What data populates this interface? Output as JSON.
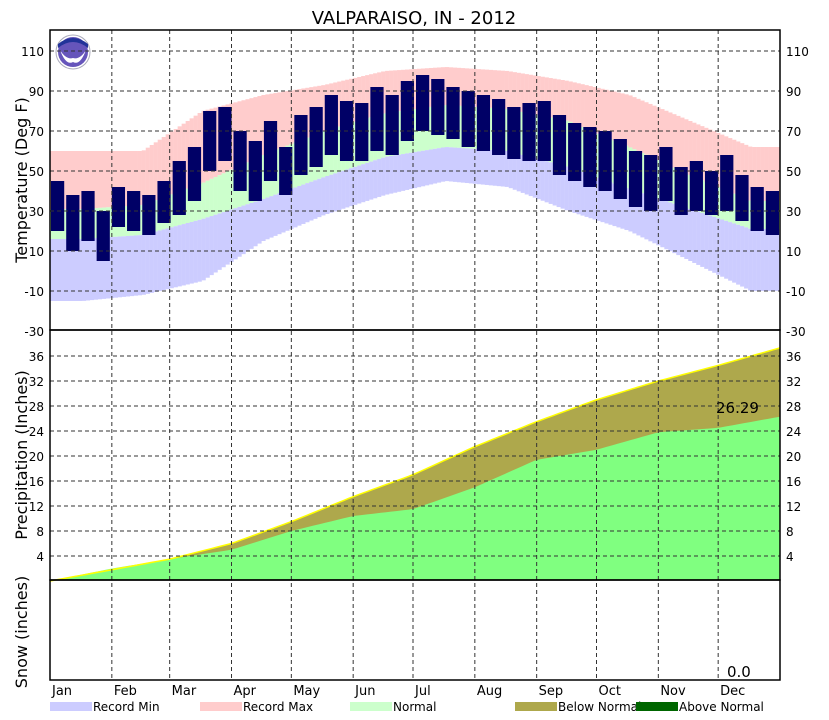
{
  "chart_data": {
    "type": "bar",
    "title": "VALPARAISO, IN - 2012",
    "months": [
      "Jan",
      "Feb",
      "Mar",
      "Apr",
      "May",
      "Jun",
      "Jul",
      "Aug",
      "Sep",
      "Oct",
      "Nov",
      "Dec"
    ],
    "colors": {
      "record_min": "#ccccff",
      "record_max": "#ffcccc",
      "normal": "#ccffcc",
      "actual_temp": "#000066",
      "below_normal": "#aea84c",
      "above_normal": "#006600",
      "precip_actual": "#80ff80",
      "normal_line": "#ffff00"
    },
    "temperature": {
      "ylabel": "Temperature (Deg F)",
      "ylim": [
        -30,
        120
      ],
      "ticks": [
        -30,
        -10,
        10,
        30,
        50,
        70,
        90,
        110
      ],
      "monthly_record_max": [
        60,
        60,
        80,
        88,
        93,
        100,
        102,
        100,
        95,
        88,
        75,
        62
      ],
      "monthly_record_min": [
        -15,
        -12,
        -5,
        15,
        28,
        38,
        45,
        42,
        30,
        20,
        5,
        -10
      ],
      "monthly_normal_high": [
        31,
        33,
        44,
        58,
        70,
        79,
        83,
        81,
        75,
        62,
        48,
        35
      ],
      "monthly_normal_low": [
        16,
        18,
        26,
        36,
        47,
        57,
        62,
        60,
        52,
        41,
        31,
        21
      ],
      "weekly_actual_high": [
        45,
        38,
        40,
        30,
        42,
        40,
        38,
        45,
        55,
        62,
        80,
        82,
        70,
        65,
        75,
        62,
        78,
        82,
        88,
        85,
        84,
        92,
        88,
        95,
        98,
        96,
        92,
        90,
        88,
        86,
        82,
        84,
        85,
        78,
        74,
        72,
        70,
        66,
        60,
        58,
        62,
        52,
        55,
        50,
        58,
        48,
        42,
        40
      ],
      "weekly_actual_low": [
        20,
        10,
        15,
        5,
        22,
        20,
        18,
        24,
        28,
        35,
        50,
        55,
        40,
        35,
        45,
        38,
        48,
        52,
        58,
        55,
        55,
        60,
        58,
        65,
        70,
        68,
        66,
        62,
        60,
        58,
        56,
        55,
        55,
        48,
        45,
        42,
        40,
        36,
        32,
        30,
        35,
        28,
        30,
        28,
        30,
        25,
        20,
        18
      ]
    },
    "precipitation": {
      "ylabel": "Precipitation (Inches)",
      "ylim": [
        0,
        40
      ],
      "ticks": [
        4,
        8,
        12,
        16,
        20,
        24,
        28,
        32,
        36
      ],
      "cumulative_normal_month_start": [
        0,
        1.8,
        3.5,
        6,
        9.5,
        13.5,
        17,
        21.5,
        25.5,
        29,
        32,
        34.5,
        37.3
      ],
      "cumulative_actual_month_start": [
        0,
        2,
        3.5,
        5,
        8,
        10.4,
        11.5,
        15,
        19.4,
        21,
        23.8,
        24.5,
        26.29
      ],
      "total_label": "26.29"
    },
    "snow": {
      "ylabel": "Snow (inches)",
      "total_label": "0.0"
    },
    "legend": [
      "Record Min",
      "Record Max",
      "Normal",
      "Below Normal",
      "Above Normal"
    ],
    "logo_text": "NOAA"
  }
}
